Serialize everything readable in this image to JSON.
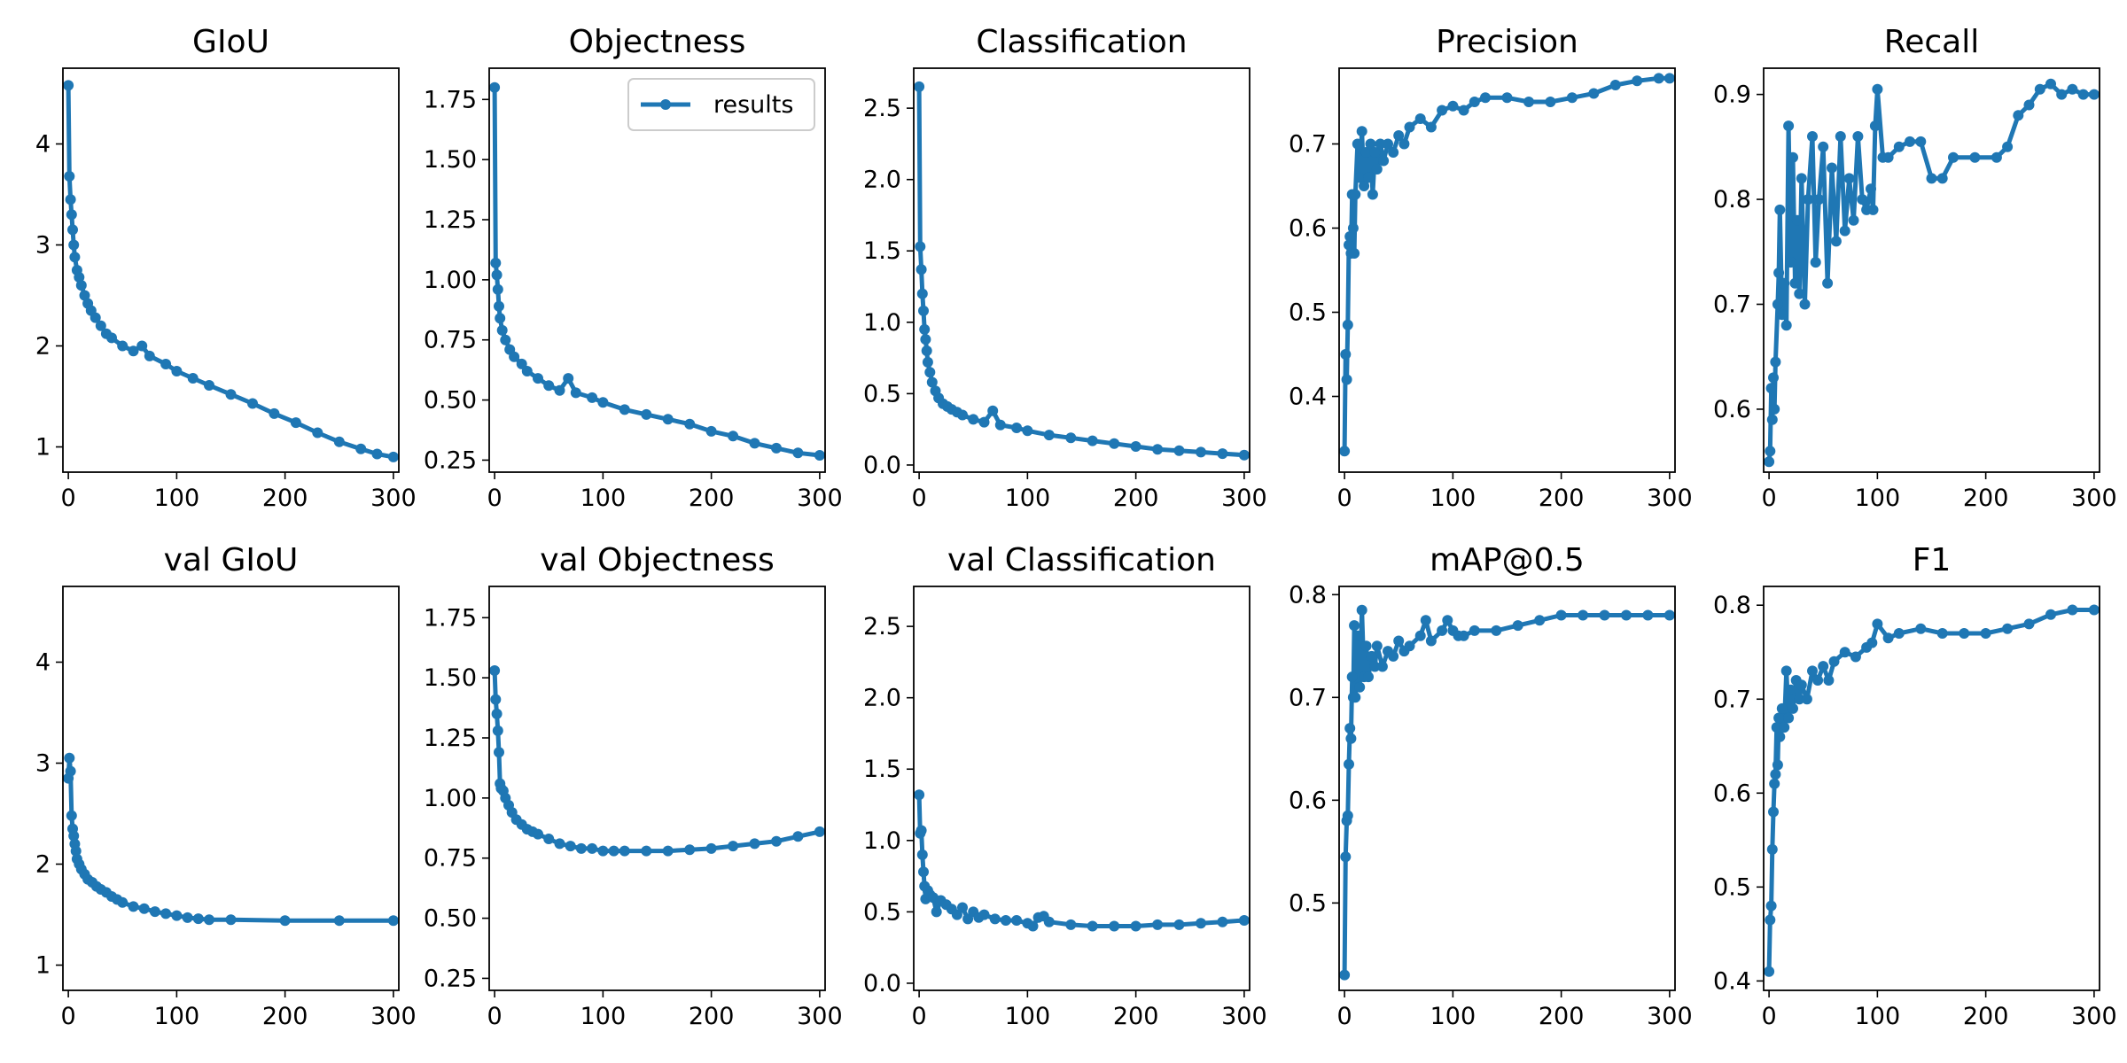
{
  "figure": {
    "background": "#ffffff",
    "accent": "#1f77b4"
  },
  "legend": {
    "label": "results",
    "panel": 1,
    "placement": "upper right"
  },
  "chart_data": [
    {
      "type": "line",
      "title": "GIoU",
      "xlim": [
        -5,
        305
      ],
      "ylim": [
        0.75,
        4.75
      ],
      "xticks": [
        0,
        100,
        200,
        300
      ],
      "yticks": [
        1,
        2,
        3,
        4
      ],
      "series": [
        {
          "x": [
            0,
            1,
            2,
            3,
            4,
            5,
            6,
            8,
            10,
            12,
            15,
            18,
            21,
            25,
            30,
            35,
            40,
            50,
            60,
            68,
            75,
            90,
            100,
            115,
            130,
            150,
            170,
            190,
            210,
            230,
            250,
            270,
            285,
            300
          ],
          "y": [
            4.58,
            3.68,
            3.45,
            3.3,
            3.15,
            3.0,
            2.88,
            2.75,
            2.68,
            2.6,
            2.5,
            2.42,
            2.35,
            2.28,
            2.2,
            2.12,
            2.08,
            2.0,
            1.95,
            2.0,
            1.9,
            1.82,
            1.75,
            1.68,
            1.61,
            1.52,
            1.43,
            1.33,
            1.24,
            1.14,
            1.05,
            0.98,
            0.93,
            0.9
          ]
        }
      ]
    },
    {
      "type": "line",
      "title": "Objectness",
      "xlim": [
        -5,
        305
      ],
      "ylim": [
        0.2,
        1.88
      ],
      "xticks": [
        0,
        100,
        200,
        300
      ],
      "yticks": [
        0.25,
        0.5,
        0.75,
        1.0,
        1.25,
        1.5,
        1.75
      ],
      "series": [
        {
          "name": "results",
          "x": [
            0,
            1,
            2,
            3,
            4,
            5,
            7,
            10,
            14,
            18,
            25,
            30,
            40,
            50,
            60,
            68,
            75,
            90,
            100,
            120,
            140,
            160,
            180,
            200,
            220,
            240,
            260,
            280,
            300
          ],
          "y": [
            1.8,
            1.07,
            1.02,
            0.96,
            0.89,
            0.84,
            0.79,
            0.75,
            0.71,
            0.68,
            0.65,
            0.62,
            0.59,
            0.56,
            0.54,
            0.59,
            0.53,
            0.51,
            0.49,
            0.46,
            0.44,
            0.42,
            0.4,
            0.37,
            0.35,
            0.32,
            0.3,
            0.28,
            0.27
          ]
        }
      ]
    },
    {
      "type": "line",
      "title": "Classification",
      "xlim": [
        -5,
        305
      ],
      "ylim": [
        -0.05,
        2.78
      ],
      "xticks": [
        0,
        100,
        200,
        300
      ],
      "yticks": [
        0.0,
        0.5,
        1.0,
        1.5,
        2.0,
        2.5
      ],
      "series": [
        {
          "x": [
            0,
            1,
            2,
            3,
            4,
            5,
            6,
            7,
            8,
            10,
            12,
            15,
            18,
            22,
            26,
            30,
            35,
            40,
            50,
            60,
            68,
            75,
            90,
            100,
            120,
            140,
            160,
            180,
            200,
            220,
            240,
            260,
            280,
            300
          ],
          "y": [
            2.65,
            1.53,
            1.37,
            1.2,
            1.08,
            0.95,
            0.88,
            0.8,
            0.72,
            0.65,
            0.58,
            0.52,
            0.47,
            0.43,
            0.41,
            0.39,
            0.37,
            0.35,
            0.32,
            0.3,
            0.38,
            0.28,
            0.26,
            0.24,
            0.21,
            0.19,
            0.17,
            0.15,
            0.13,
            0.11,
            0.1,
            0.09,
            0.08,
            0.07
          ]
        }
      ]
    },
    {
      "type": "line",
      "title": "Precision",
      "xlim": [
        -5,
        305
      ],
      "ylim": [
        0.31,
        0.79
      ],
      "xticks": [
        0,
        100,
        200,
        300
      ],
      "yticks": [
        0.4,
        0.5,
        0.6,
        0.7
      ],
      "series": [
        {
          "x": [
            0,
            1,
            2,
            3,
            4,
            5,
            6,
            7,
            8,
            9,
            10,
            12,
            14,
            16,
            18,
            20,
            22,
            24,
            26,
            28,
            30,
            33,
            36,
            40,
            45,
            50,
            55,
            60,
            70,
            80,
            90,
            100,
            110,
            120,
            130,
            150,
            170,
            190,
            210,
            230,
            250,
            270,
            290,
            300
          ],
          "y": [
            0.335,
            0.45,
            0.42,
            0.485,
            0.58,
            0.59,
            0.57,
            0.64,
            0.6,
            0.57,
            0.64,
            0.7,
            0.66,
            0.715,
            0.65,
            0.69,
            0.66,
            0.7,
            0.64,
            0.69,
            0.67,
            0.7,
            0.68,
            0.7,
            0.69,
            0.71,
            0.7,
            0.72,
            0.73,
            0.72,
            0.74,
            0.745,
            0.74,
            0.75,
            0.755,
            0.755,
            0.75,
            0.75,
            0.755,
            0.76,
            0.77,
            0.775,
            0.778,
            0.778
          ]
        }
      ]
    },
    {
      "type": "line",
      "title": "Recall",
      "xlim": [
        -5,
        305
      ],
      "ylim": [
        0.54,
        0.925
      ],
      "xticks": [
        0,
        100,
        200,
        300
      ],
      "yticks": [
        0.6,
        0.7,
        0.8,
        0.9
      ],
      "series": [
        {
          "x": [
            0,
            1,
            2,
            3,
            4,
            5,
            6,
            8,
            9,
            10,
            12,
            14,
            16,
            18,
            20,
            22,
            24,
            26,
            28,
            30,
            33,
            36,
            40,
            43,
            46,
            50,
            54,
            58,
            62,
            66,
            70,
            74,
            78,
            82,
            86,
            90,
            94,
            96,
            98,
            100,
            105,
            110,
            120,
            130,
            140,
            150,
            160,
            170,
            190,
            210,
            220,
            230,
            240,
            250,
            260,
            270,
            280,
            290,
            300
          ],
          "y": [
            0.55,
            0.56,
            0.62,
            0.59,
            0.63,
            0.6,
            0.645,
            0.7,
            0.73,
            0.79,
            0.69,
            0.72,
            0.68,
            0.87,
            0.74,
            0.84,
            0.72,
            0.78,
            0.71,
            0.82,
            0.7,
            0.8,
            0.86,
            0.74,
            0.8,
            0.85,
            0.72,
            0.83,
            0.76,
            0.86,
            0.77,
            0.82,
            0.78,
            0.86,
            0.8,
            0.79,
            0.81,
            0.79,
            0.87,
            0.905,
            0.84,
            0.84,
            0.85,
            0.855,
            0.855,
            0.82,
            0.82,
            0.84,
            0.84,
            0.84,
            0.85,
            0.88,
            0.89,
            0.905,
            0.91,
            0.9,
            0.905,
            0.9,
            0.9
          ]
        }
      ]
    },
    {
      "type": "line",
      "title": "val GIoU",
      "xlim": [
        -5,
        305
      ],
      "ylim": [
        0.75,
        4.75
      ],
      "xticks": [
        0,
        100,
        200,
        300
      ],
      "yticks": [
        1,
        2,
        3,
        4
      ],
      "series": [
        {
          "x": [
            0,
            1,
            2,
            3,
            4,
            5,
            6,
            7,
            8,
            10,
            12,
            15,
            18,
            22,
            26,
            30,
            35,
            40,
            45,
            50,
            60,
            70,
            80,
            90,
            100,
            110,
            120,
            130,
            150,
            200,
            250,
            300
          ],
          "y": [
            2.85,
            3.05,
            2.92,
            2.48,
            2.35,
            2.28,
            2.2,
            2.13,
            2.05,
            2.0,
            1.95,
            1.9,
            1.85,
            1.82,
            1.78,
            1.75,
            1.72,
            1.68,
            1.65,
            1.62,
            1.58,
            1.56,
            1.53,
            1.51,
            1.49,
            1.47,
            1.46,
            1.45,
            1.45,
            1.44,
            1.44,
            1.44
          ]
        }
      ]
    },
    {
      "type": "line",
      "title": "val Objectness",
      "xlim": [
        -5,
        305
      ],
      "ylim": [
        0.2,
        1.88
      ],
      "xticks": [
        0,
        100,
        200,
        300
      ],
      "yticks": [
        0.25,
        0.5,
        0.75,
        1.0,
        1.25,
        1.5,
        1.75
      ],
      "series": [
        {
          "x": [
            0,
            1,
            2,
            3,
            4,
            5,
            6,
            8,
            10,
            13,
            16,
            20,
            25,
            30,
            35,
            40,
            50,
            60,
            70,
            80,
            90,
            100,
            110,
            120,
            140,
            160,
            180,
            200,
            220,
            240,
            260,
            280,
            300
          ],
          "y": [
            1.53,
            1.41,
            1.35,
            1.28,
            1.19,
            1.06,
            1.04,
            1.03,
            1.0,
            0.97,
            0.94,
            0.91,
            0.89,
            0.87,
            0.86,
            0.85,
            0.83,
            0.81,
            0.8,
            0.79,
            0.79,
            0.78,
            0.78,
            0.78,
            0.78,
            0.78,
            0.785,
            0.79,
            0.8,
            0.81,
            0.82,
            0.84,
            0.86
          ]
        }
      ]
    },
    {
      "type": "line",
      "title": "val Classification",
      "xlim": [
        -5,
        305
      ],
      "ylim": [
        -0.05,
        2.78
      ],
      "xticks": [
        0,
        100,
        200,
        300
      ],
      "yticks": [
        0.0,
        0.5,
        1.0,
        1.5,
        2.0,
        2.5
      ],
      "series": [
        {
          "x": [
            0,
            1,
            2,
            3,
            4,
            5,
            6,
            8,
            10,
            13,
            16,
            20,
            25,
            30,
            35,
            40,
            45,
            50,
            55,
            60,
            70,
            80,
            90,
            100,
            105,
            110,
            115,
            120,
            140,
            160,
            180,
            200,
            220,
            240,
            260,
            280,
            300
          ],
          "y": [
            1.32,
            1.05,
            1.07,
            0.9,
            0.78,
            0.68,
            0.59,
            0.65,
            0.62,
            0.6,
            0.5,
            0.58,
            0.55,
            0.52,
            0.48,
            0.53,
            0.45,
            0.5,
            0.46,
            0.48,
            0.45,
            0.44,
            0.44,
            0.42,
            0.4,
            0.46,
            0.47,
            0.43,
            0.41,
            0.4,
            0.4,
            0.4,
            0.41,
            0.41,
            0.42,
            0.43,
            0.44
          ]
        }
      ]
    },
    {
      "type": "line",
      "title": "mAP@0.5",
      "xlim": [
        -5,
        305
      ],
      "ylim": [
        0.415,
        0.808
      ],
      "xticks": [
        0,
        100,
        200,
        300
      ],
      "yticks": [
        0.5,
        0.6,
        0.7,
        0.8
      ],
      "series": [
        {
          "x": [
            0,
            1,
            2,
            3,
            4,
            5,
            6,
            7,
            8,
            9,
            10,
            12,
            14,
            16,
            18,
            20,
            22,
            25,
            28,
            30,
            35,
            40,
            45,
            50,
            55,
            60,
            70,
            75,
            80,
            90,
            95,
            100,
            105,
            110,
            120,
            140,
            160,
            180,
            200,
            220,
            240,
            260,
            280,
            300
          ],
          "y": [
            0.43,
            0.545,
            0.58,
            0.585,
            0.635,
            0.67,
            0.66,
            0.72,
            0.7,
            0.77,
            0.7,
            0.76,
            0.71,
            0.785,
            0.72,
            0.75,
            0.72,
            0.74,
            0.73,
            0.75,
            0.73,
            0.745,
            0.74,
            0.755,
            0.745,
            0.75,
            0.76,
            0.775,
            0.755,
            0.765,
            0.775,
            0.765,
            0.76,
            0.76,
            0.765,
            0.765,
            0.77,
            0.775,
            0.78,
            0.78,
            0.78,
            0.78,
            0.78,
            0.78
          ]
        }
      ]
    },
    {
      "type": "line",
      "title": "F1",
      "xlim": [
        -5,
        305
      ],
      "ylim": [
        0.39,
        0.82
      ],
      "xticks": [
        0,
        100,
        200,
        300
      ],
      "yticks": [
        0.4,
        0.5,
        0.6,
        0.7,
        0.8
      ],
      "series": [
        {
          "x": [
            0,
            1,
            2,
            3,
            4,
            5,
            6,
            7,
            8,
            9,
            10,
            12,
            14,
            16,
            18,
            20,
            22,
            25,
            28,
            30,
            35,
            40,
            45,
            50,
            55,
            60,
            70,
            80,
            90,
            95,
            100,
            110,
            120,
            140,
            160,
            180,
            200,
            220,
            240,
            260,
            280,
            300
          ],
          "y": [
            0.41,
            0.465,
            0.48,
            0.54,
            0.58,
            0.61,
            0.62,
            0.67,
            0.63,
            0.68,
            0.66,
            0.69,
            0.67,
            0.73,
            0.68,
            0.71,
            0.69,
            0.72,
            0.7,
            0.715,
            0.7,
            0.73,
            0.72,
            0.735,
            0.72,
            0.74,
            0.75,
            0.745,
            0.755,
            0.76,
            0.78,
            0.765,
            0.77,
            0.775,
            0.77,
            0.77,
            0.77,
            0.775,
            0.78,
            0.79,
            0.795,
            0.795
          ]
        }
      ]
    }
  ]
}
